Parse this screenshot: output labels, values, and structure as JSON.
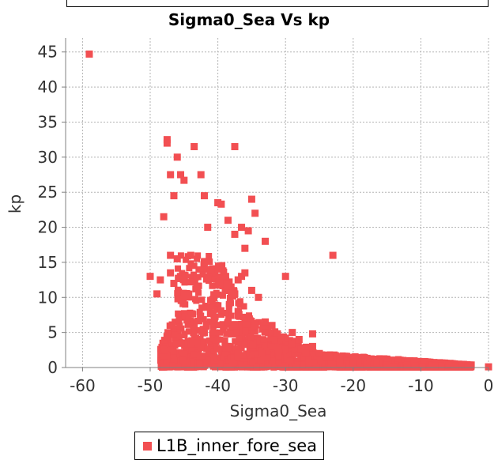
{
  "chart_data": {
    "type": "scatter",
    "title": "Sigma0_Sea Vs kp",
    "xlabel": "Sigma0_Sea",
    "ylabel": "kp",
    "xlim": [
      -62.5,
      0
    ],
    "ylim": [
      0,
      47
    ],
    "x_ticks": [
      -60,
      -50,
      -40,
      -30,
      -20,
      -10,
      0
    ],
    "y_ticks": [
      0,
      5,
      10,
      15,
      20,
      25,
      30,
      35,
      40,
      45
    ],
    "grid": true,
    "legend_position": "bottom-center",
    "series": [
      {
        "name": "L1B_inner_fore_sea",
        "color": "#f24f52",
        "points": [
          [
            -59,
            44.7
          ],
          [
            -47.5,
            32.5
          ],
          [
            -47.5,
            32
          ],
          [
            -43.5,
            31.5
          ],
          [
            -37.5,
            31.5
          ],
          [
            -46,
            30
          ],
          [
            -47,
            27.5
          ],
          [
            -45.5,
            27.5
          ],
          [
            -45,
            26.7
          ],
          [
            -42.5,
            27.5
          ],
          [
            -46.5,
            24.5
          ],
          [
            -42,
            24.5
          ],
          [
            -35,
            24
          ],
          [
            -48,
            21.5
          ],
          [
            -40,
            23.5
          ],
          [
            -39.5,
            23.3
          ],
          [
            -34.5,
            22
          ],
          [
            -38.5,
            21
          ],
          [
            -36.5,
            20
          ],
          [
            -35.5,
            19.5
          ],
          [
            -33,
            18
          ],
          [
            -37.5,
            19
          ],
          [
            -41.5,
            20
          ],
          [
            -36,
            17
          ],
          [
            -47,
            16
          ],
          [
            -46,
            15.5
          ],
          [
            -23,
            16
          ],
          [
            -36.5,
            13
          ],
          [
            -30,
            13
          ],
          [
            -37,
            12.5
          ],
          [
            -36,
            13.5
          ],
          [
            -35,
            11
          ],
          [
            -34,
            10
          ],
          [
            -37.5,
            10.5
          ],
          [
            -50,
            13
          ],
          [
            -48.5,
            12.5
          ],
          [
            -49,
            10.5
          ],
          [
            -47,
            13.5
          ],
          [
            -46.5,
            12
          ],
          [
            -44,
            16
          ],
          [
            -42,
            15
          ],
          [
            -40,
            14
          ],
          [
            -38.5,
            12
          ],
          [
            -33,
            6.5
          ],
          [
            -32,
            6
          ],
          [
            -29,
            5
          ],
          [
            -28,
            4
          ],
          [
            -26,
            3
          ],
          [
            -27,
            2
          ],
          [
            -25,
            2
          ],
          [
            -24,
            1.5
          ],
          [
            -22,
            1
          ],
          [
            -20,
            0.6
          ],
          [
            -18,
            0.4
          ],
          [
            -15,
            0.35
          ],
          [
            -12,
            0.3
          ],
          [
            -8,
            0.25
          ],
          [
            -5,
            0.2
          ],
          [
            -3,
            0.2
          ],
          [
            0,
            0.1
          ],
          [
            -26,
            4.8
          ]
        ]
      }
    ]
  }
}
